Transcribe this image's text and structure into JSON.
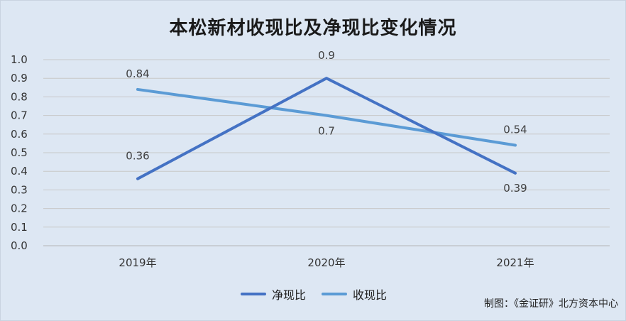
{
  "chart_data": {
    "type": "line",
    "title": "本松新材收现比及净现比变化情况",
    "categories": [
      "2019年",
      "2020年",
      "2021年"
    ],
    "ylim": [
      0,
      1.0
    ],
    "yticks": [
      "0.0",
      "0.1",
      "0.2",
      "0.3",
      "0.4",
      "0.5",
      "0.6",
      "0.7",
      "0.8",
      "0.9",
      "1.0"
    ],
    "grid": true,
    "legend_position": "bottom",
    "series": [
      {
        "name": "净现比",
        "values": [
          0.36,
          0.9,
          0.39
        ],
        "labels": [
          "0.36",
          "0.9",
          "0.39"
        ],
        "color": "#4472c4"
      },
      {
        "name": "收现比",
        "values": [
          0.84,
          0.7,
          0.54
        ],
        "labels": [
          "0.84",
          "0.7",
          "0.54"
        ],
        "color": "#5b9bd5"
      }
    ]
  },
  "credit": "制图：《金证研》北方资本中心"
}
